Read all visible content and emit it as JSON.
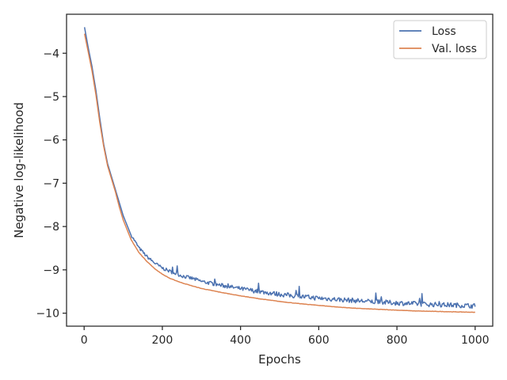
{
  "chart_data": {
    "type": "line",
    "title": "",
    "xlabel": "Epochs",
    "ylabel": "Negative log-likelihood",
    "xlim": [
      -45,
      1045
    ],
    "ylim": [
      -10.3,
      -3.1
    ],
    "xticks": [
      {
        "value": 0,
        "label": "0"
      },
      {
        "value": 200,
        "label": "200"
      },
      {
        "value": 400,
        "label": "400"
      },
      {
        "value": 600,
        "label": "600"
      },
      {
        "value": 800,
        "label": "800"
      },
      {
        "value": 1000,
        "label": "1000"
      }
    ],
    "yticks": [
      {
        "value": -4,
        "label": "−4"
      },
      {
        "value": -5,
        "label": "−5"
      },
      {
        "value": -6,
        "label": "−6"
      },
      {
        "value": -7,
        "label": "−7"
      },
      {
        "value": -8,
        "label": "−8"
      },
      {
        "value": -9,
        "label": "−9"
      },
      {
        "value": -10,
        "label": "−10"
      }
    ],
    "grid": false,
    "legend": "top-right",
    "series": [
      {
        "name": "Loss",
        "color": "#4c72b0",
        "x": [
          1,
          10,
          20,
          30,
          40,
          50,
          60,
          70,
          80,
          90,
          100,
          120,
          140,
          160,
          180,
          200,
          220,
          250,
          280,
          300,
          350,
          400,
          450,
          500,
          550,
          600,
          650,
          700,
          750,
          800,
          850,
          900,
          950,
          1000
        ],
        "y": [
          -3.4,
          -3.85,
          -4.3,
          -4.85,
          -5.5,
          -6.1,
          -6.55,
          -6.85,
          -7.15,
          -7.45,
          -7.75,
          -8.2,
          -8.5,
          -8.7,
          -8.85,
          -8.97,
          -9.05,
          -9.15,
          -9.22,
          -9.28,
          -9.37,
          -9.45,
          -9.52,
          -9.58,
          -9.63,
          -9.67,
          -9.7,
          -9.73,
          -9.76,
          -9.78,
          -9.8,
          -9.82,
          -9.83,
          -9.85
        ]
      },
      {
        "name": "Val. loss",
        "color": "#dd8452",
        "x": [
          1,
          10,
          20,
          30,
          40,
          50,
          60,
          70,
          80,
          90,
          100,
          120,
          140,
          160,
          180,
          200,
          220,
          250,
          280,
          300,
          350,
          400,
          450,
          500,
          550,
          600,
          650,
          700,
          750,
          800,
          850,
          900,
          950,
          1000
        ],
        "y": [
          -3.55,
          -3.95,
          -4.4,
          -4.95,
          -5.6,
          -6.15,
          -6.6,
          -6.9,
          -7.2,
          -7.55,
          -7.85,
          -8.3,
          -8.6,
          -8.8,
          -8.97,
          -9.1,
          -9.2,
          -9.3,
          -9.38,
          -9.43,
          -9.52,
          -9.6,
          -9.67,
          -9.73,
          -9.78,
          -9.82,
          -9.86,
          -9.89,
          -9.91,
          -9.93,
          -9.95,
          -9.96,
          -9.97,
          -9.98
        ]
      }
    ]
  }
}
